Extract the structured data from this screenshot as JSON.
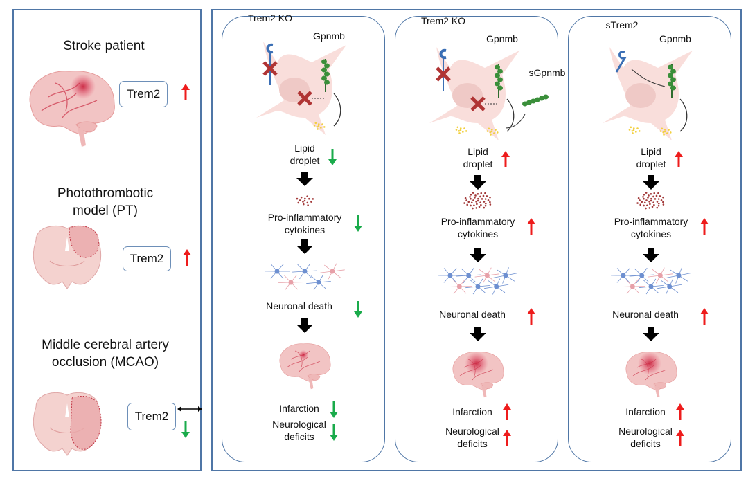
{
  "left_panel": {
    "sections": [
      {
        "title": "Stroke patient",
        "box": "Trem2",
        "change": "up"
      },
      {
        "title": "Photothrombotic",
        "title2": "model (PT)",
        "box": "Trem2",
        "change": "up"
      },
      {
        "title": "Middle cerebral artery",
        "title2": "occlusion (MCAO)",
        "box": "Trem2",
        "change": "no-change-or-down"
      }
    ]
  },
  "columns": [
    {
      "receptor": "Trem2 KO",
      "ligand": "Gpnmb",
      "soluble": "",
      "lipid": "Lipid",
      "lipid2": "droplet",
      "cytokines": "Pro-inflammatory",
      "cytokines2": "cytokines",
      "death": "Neuronal death",
      "infarction": "Infarction",
      "deficits": "Neurological",
      "deficits2": "deficits",
      "direction": "down"
    },
    {
      "receptor": "Trem2 KO",
      "ligand": "Gpnmb",
      "soluble": "sGpnmb",
      "lipid": "Lipid",
      "lipid2": "droplet",
      "cytokines": "Pro-inflammatory",
      "cytokines2": "cytokines",
      "death": "Neuronal death",
      "infarction": "Infarction",
      "deficits": "Neurological",
      "deficits2": "deficits",
      "direction": "up"
    },
    {
      "receptor": "sTrem2",
      "ligand": "Gpnmb",
      "soluble": "",
      "lipid": "Lipid",
      "lipid2": "droplet",
      "cytokines": "Pro-inflammatory",
      "cytokines2": "cytokines",
      "death": "Neuronal death",
      "infarction": "Infarction",
      "deficits": "Neurological",
      "deficits2": "deficits",
      "direction": "up"
    }
  ],
  "colors": {
    "border": "#4f76a6",
    "up": "#ee1c1c",
    "down": "#1aab4b",
    "cell": "#f9dedb",
    "brain": "#f2c4c4",
    "trem2": "#3b6fb5",
    "gpnmb": "#3a8f3a",
    "cross": "#b03434"
  }
}
